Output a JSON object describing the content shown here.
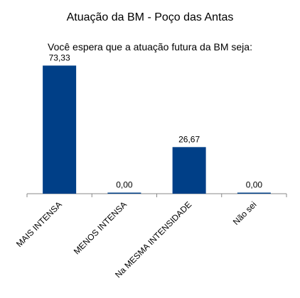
{
  "chart_data": {
    "type": "bar",
    "title": "Atuação da BM - Poço das Antas",
    "subtitle": "Você espera que a atuação futura da BM seja:",
    "categories": [
      "MAIS INTENSA",
      "MENOS INTENSA",
      "Na MESMA INTENSIDADE",
      "Não sei"
    ],
    "values": [
      73.33,
      0.0,
      26.67,
      0.0
    ],
    "value_labels": [
      "73,33",
      "0,00",
      "26,67",
      "0,00"
    ],
    "ylim": [
      0,
      80
    ],
    "grid": false,
    "legend": "none",
    "bar_color": "#003f87",
    "axis_color": "#888888",
    "text_color": "#000000"
  }
}
